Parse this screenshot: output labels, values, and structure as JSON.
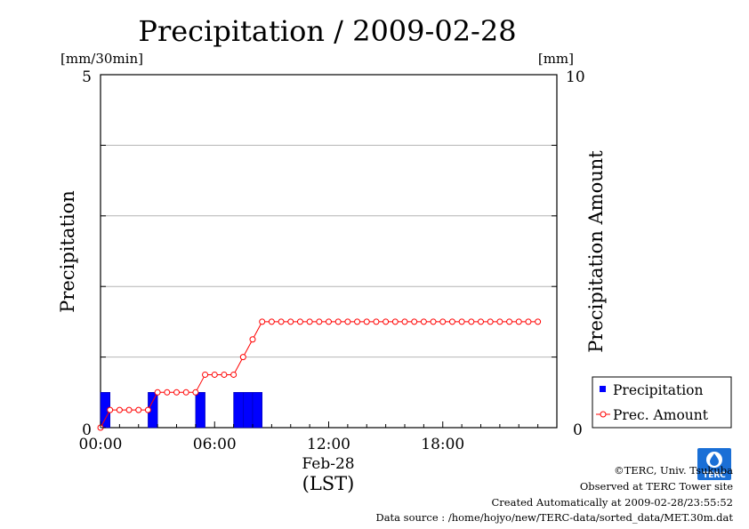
{
  "chart_data": {
    "type": "bar+line",
    "title": "Precipitation / 2009-02-28",
    "ylabel_left": "Precipitation",
    "ylabel_right": "Precipitation Amount",
    "unit_left": "[mm/30min]",
    "unit_right": "[mm]",
    "ylim_left": [
      0,
      5
    ],
    "ylim_right": [
      0,
      10
    ],
    "left_ticks": [
      "5",
      "0"
    ],
    "right_ticks": [
      "10",
      "0"
    ],
    "x_range_hours": [
      0,
      24
    ],
    "x_ticks": [
      {
        "hour": 0,
        "label": "00:00"
      },
      {
        "hour": 6,
        "label": "06:00"
      },
      {
        "hour": 12,
        "label": "12:00"
      },
      {
        "hour": 18,
        "label": "18:00"
      }
    ],
    "x_date_label": "Feb-28",
    "x_zone_label": "(LST)",
    "grid": true,
    "legend_position": "bottom-right",
    "series": [
      {
        "name": "Precipitation",
        "kind": "bar",
        "axis": "left",
        "color": "#0000ff",
        "interval_hours": 0.5,
        "data": [
          {
            "start": 0.0,
            "value": 0.5
          },
          {
            "start": 2.5,
            "value": 0.5
          },
          {
            "start": 5.0,
            "value": 0.5
          },
          {
            "start": 7.0,
            "value": 0.5
          },
          {
            "start": 7.5,
            "value": 0.5
          },
          {
            "start": 8.0,
            "value": 0.5
          }
        ]
      },
      {
        "name": "Prec. Amount",
        "kind": "line",
        "axis": "right",
        "color": "#ff0000",
        "x_start": 0,
        "x_step": 0.5,
        "values": [
          0,
          0.5,
          0.5,
          0.5,
          0.5,
          0.5,
          1.0,
          1.0,
          1.0,
          1.0,
          1.0,
          1.5,
          1.5,
          1.5,
          1.5,
          2.0,
          2.5,
          3.0,
          3.0,
          3.0,
          3.0,
          3.0,
          3.0,
          3.0,
          3.0,
          3.0,
          3.0,
          3.0,
          3.0,
          3.0,
          3.0,
          3.0,
          3.0,
          3.0,
          3.0,
          3.0,
          3.0,
          3.0,
          3.0,
          3.0,
          3.0,
          3.0,
          3.0,
          3.0,
          3.0,
          3.0,
          3.0
        ]
      }
    ]
  },
  "credits": {
    "copyright": "©TERC, Univ. Tsukuba",
    "observed": "Observed at TERC Tower site",
    "created": "Created Automatically at 2009-02-28/23:55:52",
    "source": "Data source : /home/hojyo/new/TERC-data/sorted_data/MET.30m.dat"
  },
  "logo": {
    "name": "terc-logo",
    "text": "TERC",
    "color": "#1a6fd6"
  }
}
